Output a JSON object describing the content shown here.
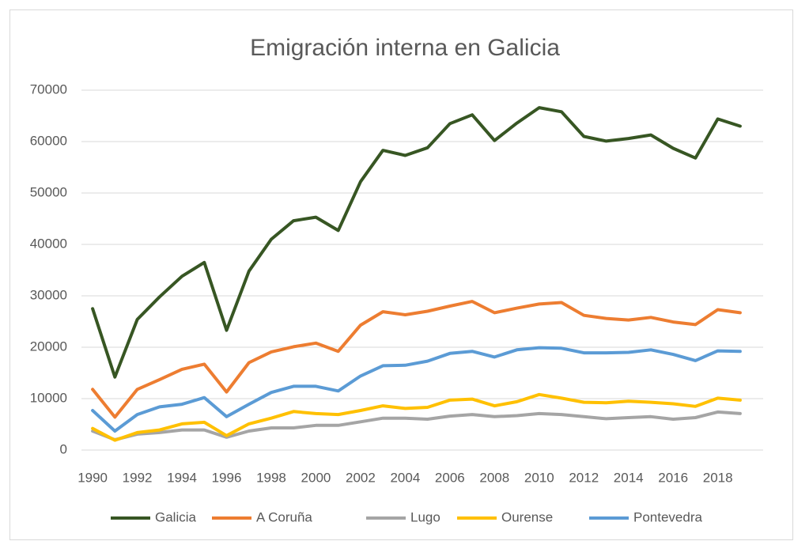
{
  "chart_data": {
    "type": "line",
    "title": "Emigración interna en Galicia",
    "categories": [
      "1990",
      null,
      "1992",
      null,
      "1994",
      null,
      "1996",
      null,
      "1998",
      null,
      "2000",
      null,
      "2002",
      null,
      "2004",
      null,
      "2006",
      null,
      "2008",
      null,
      "2010",
      null,
      "2012",
      null,
      "2014",
      null,
      "2016",
      null,
      "2018",
      null
    ],
    "series": [
      {
        "name": "Galicia",
        "color": "#375623",
        "values": [
          27500,
          14200,
          25400,
          29800,
          33800,
          36500,
          23300,
          34800,
          41000,
          44600,
          45300,
          42700,
          52200,
          58300,
          57300,
          58800,
          63500,
          65200,
          60200,
          63600,
          66600,
          65800,
          61000,
          60100,
          60600,
          61300,
          58700,
          56800,
          64400,
          63000
        ]
      },
      {
        "name": "A Coruña",
        "color": "#ed7d31",
        "values": [
          11800,
          6400,
          11800,
          13700,
          15700,
          16700,
          11300,
          17000,
          19100,
          20100,
          20800,
          19200,
          24300,
          26900,
          26300,
          27000,
          28000,
          28900,
          26700,
          27600,
          28400,
          28700,
          26200,
          25600,
          25300,
          25800,
          24900,
          24400,
          27300,
          26700
        ]
      },
      {
        "name": "Lugo",
        "color": "#a5a5a5",
        "values": [
          3700,
          2000,
          3100,
          3400,
          3900,
          3900,
          2500,
          3700,
          4300,
          4300,
          4800,
          4800,
          5500,
          6200,
          6200,
          6000,
          6600,
          6900,
          6500,
          6700,
          7100,
          6900,
          6500,
          6100,
          6300,
          6500,
          6000,
          6300,
          7400,
          7100
        ]
      },
      {
        "name": "Ourense",
        "color": "#ffc000",
        "values": [
          4200,
          1900,
          3400,
          3900,
          5100,
          5400,
          2800,
          5100,
          6200,
          7500,
          7100,
          6900,
          7700,
          8600,
          8100,
          8300,
          9700,
          9900,
          8600,
          9400,
          10800,
          10100,
          9300,
          9200,
          9500,
          9300,
          9000,
          8500,
          10100,
          9700
        ]
      },
      {
        "name": "Pontevedra",
        "color": "#5b9bd5",
        "values": [
          7700,
          3700,
          6900,
          8400,
          8900,
          10200,
          6500,
          8900,
          11200,
          12400,
          12400,
          11500,
          14400,
          16400,
          16500,
          17300,
          18800,
          19200,
          18100,
          19500,
          19900,
          19800,
          18900,
          18900,
          19000,
          19500,
          18600,
          17400,
          19300,
          19200
        ]
      }
    ],
    "ylim": [
      0,
      70000
    ],
    "yticks": [
      0,
      10000,
      20000,
      30000,
      40000,
      50000,
      60000,
      70000
    ],
    "grid": true,
    "legend": "bottom"
  }
}
